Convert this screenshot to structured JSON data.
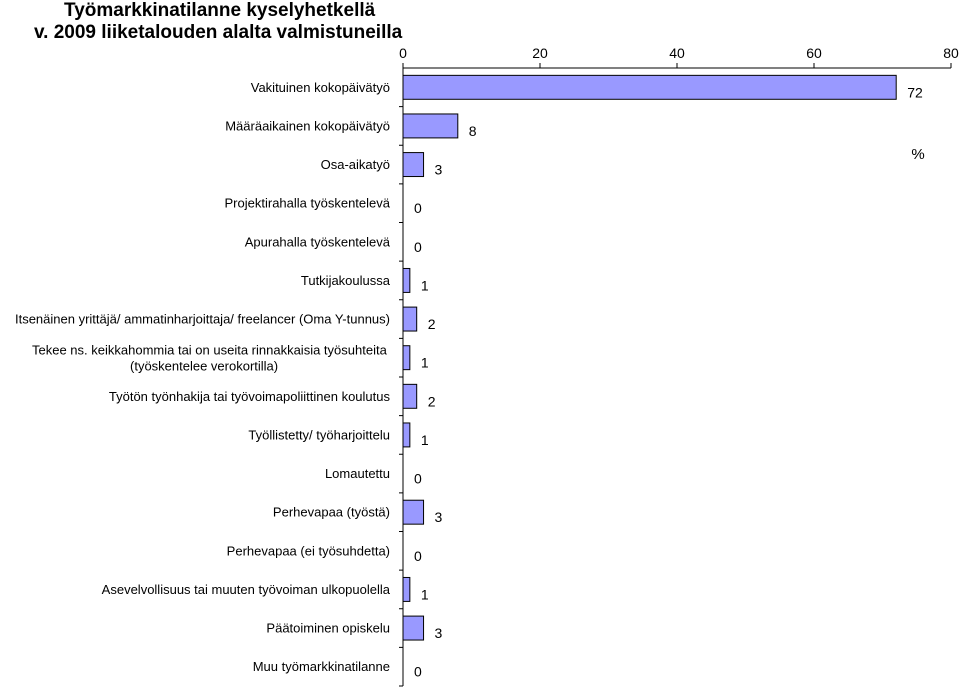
{
  "chart_data": {
    "type": "bar",
    "orientation": "horizontal",
    "title_lines": [
      "Työmarkkinatilanne kyselyhetkellä",
      "v. 2009 liiketalouden alalta valmistuneilla"
    ],
    "unit_label": "%",
    "xlim": [
      0,
      80
    ],
    "xticks": [
      "0",
      "20",
      "40",
      "60",
      "80"
    ],
    "bar_color": "#9999ff",
    "categories": [
      [
        "Vakituinen kokopäivätyö"
      ],
      [
        "Määräaikainen kokopäivätyö"
      ],
      [
        "Osa-aikatyö"
      ],
      [
        "Projektirahalla työskentelevä"
      ],
      [
        "Apurahalla työskentelevä"
      ],
      [
        "Tutkijakoulussa"
      ],
      [
        "Itsenäinen yrittäjä/ ammatinharjoittaja/ freelancer (Oma Y-tunnus)"
      ],
      [
        "Tekee ns. keikkahommia tai on useita rinnakkaisia työsuhteita",
        "(työskentelee verokortilla)"
      ],
      [
        "Työtön työnhakija tai työvoimapoliittinen koulutus"
      ],
      [
        "Työllistetty/ työharjoittelu"
      ],
      [
        "Lomautettu"
      ],
      [
        "Perhevapaa (työstä)"
      ],
      [
        "Perhevapaa (ei työsuhdetta)"
      ],
      [
        "Asevelvollisuus tai muuten työvoiman ulkopuolella"
      ],
      [
        "Päätoiminen opiskelu"
      ],
      [
        "Muu työmarkkinatilanne"
      ]
    ],
    "values": [
      72,
      8,
      3,
      0,
      0,
      1,
      2,
      1,
      2,
      1,
      0,
      3,
      0,
      1,
      3,
      0
    ],
    "value_labels": [
      "72",
      "8",
      "3",
      "0",
      "0",
      "1",
      "2",
      "1",
      "2",
      "1",
      "0",
      "3",
      "0",
      "1",
      "3",
      "0"
    ]
  }
}
